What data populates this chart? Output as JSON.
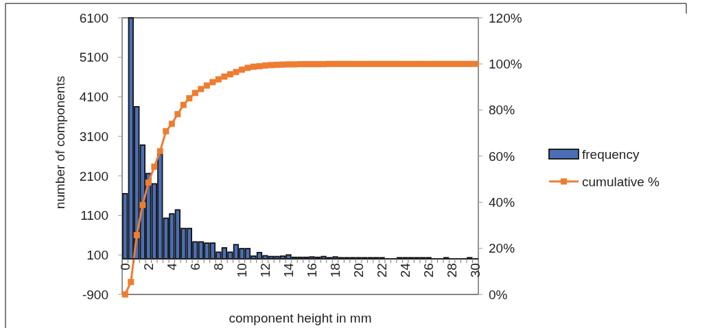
{
  "chart_data": {
    "type": "bar",
    "xlabel": "component height in mm",
    "ylabel": "number of components",
    "categories": [
      "0",
      null,
      null,
      null,
      "2",
      null,
      null,
      null,
      "4",
      null,
      null,
      null,
      "6",
      null,
      null,
      null,
      "8",
      null,
      null,
      null,
      "10",
      null,
      null,
      null,
      "12",
      null,
      null,
      null,
      "14",
      null,
      null,
      null,
      "16",
      null,
      null,
      null,
      "18",
      null,
      null,
      null,
      "20",
      null,
      null,
      null,
      "22",
      null,
      null,
      null,
      "24",
      null,
      null,
      null,
      "26",
      null,
      null,
      null,
      "28",
      null,
      null,
      null,
      "30"
    ],
    "series": [
      {
        "name": "frequency",
        "color": "#4a6fb5",
        "values": [
          1650,
          6100,
          3850,
          2880,
          2160,
          1900,
          2650,
          1030,
          1140,
          1240,
          770,
          770,
          430,
          430,
          400,
          400,
          170,
          280,
          170,
          360,
          260,
          260,
          70,
          160,
          80,
          60,
          60,
          70,
          100,
          40,
          40,
          40,
          50,
          40,
          60,
          30,
          50,
          30,
          30,
          30,
          30,
          30,
          30,
          30,
          30,
          0,
          0,
          30,
          30,
          30,
          30,
          30,
          30,
          0,
          0,
          30,
          0,
          0,
          0,
          30,
          0
        ]
      },
      {
        "name": "cumulative %",
        "type": "line",
        "axis": "y2",
        "color": "#ed7d31",
        "values": [
          0,
          5.4,
          25.7,
          38.8,
          48.5,
          55.4,
          62.1,
          70.8,
          74,
          78.2,
          82.2,
          85.1,
          87.4,
          89.1,
          90.6,
          92.1,
          93.3,
          94.5,
          95.5,
          96.5,
          97.5,
          98.3,
          98.8,
          99,
          99.3,
          99.5,
          99.6,
          99.7,
          99.8,
          99.8,
          99.9,
          99.9,
          99.9,
          99.9,
          99.9,
          100,
          100,
          100,
          100,
          100,
          100,
          100,
          100,
          100,
          100,
          100,
          100,
          100,
          100,
          100,
          100,
          100,
          100,
          100,
          100,
          100,
          100,
          100,
          100,
          100,
          100
        ]
      }
    ],
    "ylim": [
      -900,
      6100
    ],
    "yticks": [
      -900,
      100,
      1100,
      2100,
      3100,
      4100,
      5100,
      6100
    ],
    "y2lim": [
      0,
      120
    ],
    "y2ticks": [
      {
        "value": 0,
        "label": "0%"
      },
      {
        "value": 20,
        "label": "20%"
      },
      {
        "value": 40,
        "label": "40%"
      },
      {
        "value": 60,
        "label": "60%"
      },
      {
        "value": 80,
        "label": "80%"
      },
      {
        "value": 100,
        "label": "100%"
      },
      {
        "value": 120,
        "label": "120%"
      }
    ],
    "marker": "square",
    "legend": "right",
    "grid": false
  }
}
